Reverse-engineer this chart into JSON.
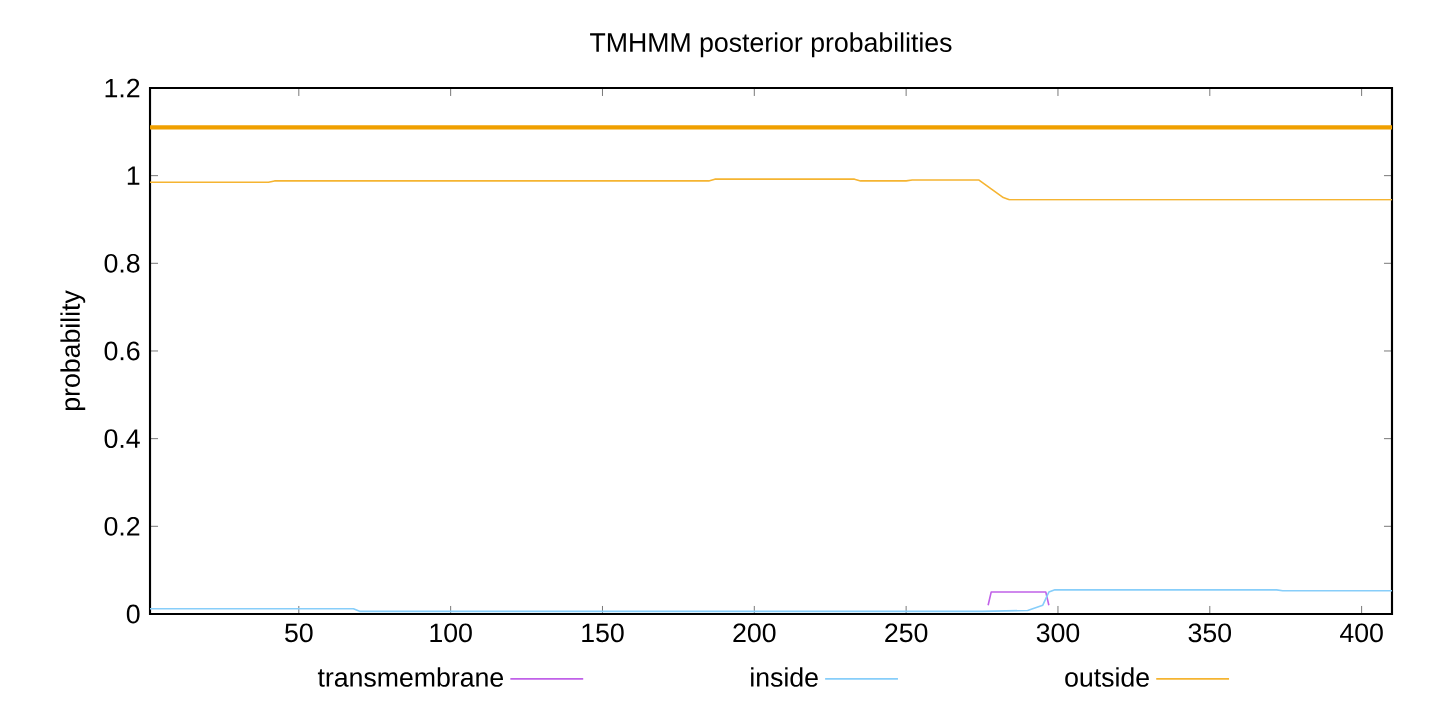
{
  "chart_data": {
    "type": "line",
    "title": "TMHMM posterior probabilities",
    "ylabel": "probability",
    "xlim": [
      1,
      410
    ],
    "xticks": [
      50,
      100,
      150,
      200,
      250,
      300,
      350,
      400
    ],
    "ylim": [
      0,
      1.2
    ],
    "yticks": [
      0,
      0.2,
      0.4,
      0.6,
      0.8,
      1,
      1.2
    ],
    "legend": "bottom",
    "ref_lines": [
      {
        "axis": "y",
        "value": 1.11,
        "color": "#f0a000"
      }
    ],
    "series": [
      {
        "name": "transmembrane",
        "color": "#c061e8",
        "x": [
          277,
          278,
          296,
          297
        ],
        "values": [
          0.02,
          0.05,
          0.05,
          0.02
        ]
      },
      {
        "name": "inside",
        "color": "#87cefa",
        "x": [
          1,
          68,
          70,
          275,
          290,
          295,
          297,
          299,
          372,
          374,
          410
        ],
        "values": [
          0.012,
          0.012,
          0.006,
          0.006,
          0.008,
          0.02,
          0.05,
          0.055,
          0.055,
          0.053,
          0.053
        ]
      },
      {
        "name": "outside",
        "color": "#f5b431",
        "x": [
          1,
          40,
          42,
          185,
          187,
          233,
          235,
          250,
          252,
          274,
          278,
          282,
          284,
          410
        ],
        "values": [
          0.985,
          0.985,
          0.988,
          0.988,
          0.992,
          0.992,
          0.988,
          0.988,
          0.99,
          0.99,
          0.97,
          0.95,
          0.945,
          0.945
        ]
      }
    ]
  }
}
